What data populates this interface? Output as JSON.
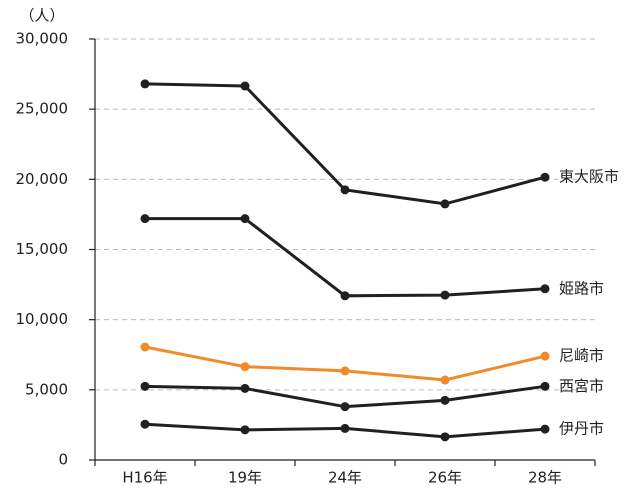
{
  "chart_data": {
    "type": "line",
    "y_label": "（人）",
    "categories": [
      "H16年",
      "19年",
      "24年",
      "26年",
      "28年"
    ],
    "ylim": [
      0,
      30000
    ],
    "yticks": [
      0,
      {
        "value": 5000,
        "label": "5,000"
      },
      {
        "value": 10000,
        "label": "10,000"
      },
      {
        "value": 15000,
        "label": "15,000"
      },
      {
        "value": 20000,
        "label": "20,000"
      },
      {
        "value": 25000,
        "label": "25,000"
      },
      {
        "value": 30000,
        "label": "30,000"
      }
    ],
    "grid": true,
    "series": [
      {
        "name": "東大阪市",
        "color": "#231f20",
        "values": [
          26800,
          26650,
          19250,
          18250,
          20150
        ]
      },
      {
        "name": "姫路市",
        "color": "#231f20",
        "values": [
          17200,
          17200,
          11700,
          11750,
          12200
        ]
      },
      {
        "name": "尼崎市",
        "color": "#f08a2a",
        "values": [
          8050,
          6650,
          6350,
          5700,
          7400
        ]
      },
      {
        "name": "西宮市",
        "color": "#231f20",
        "values": [
          5250,
          5100,
          3800,
          4250,
          5250
        ]
      },
      {
        "name": "伊丹市",
        "color": "#231f20",
        "values": [
          2550,
          2150,
          2250,
          1650,
          2200
        ]
      }
    ]
  }
}
